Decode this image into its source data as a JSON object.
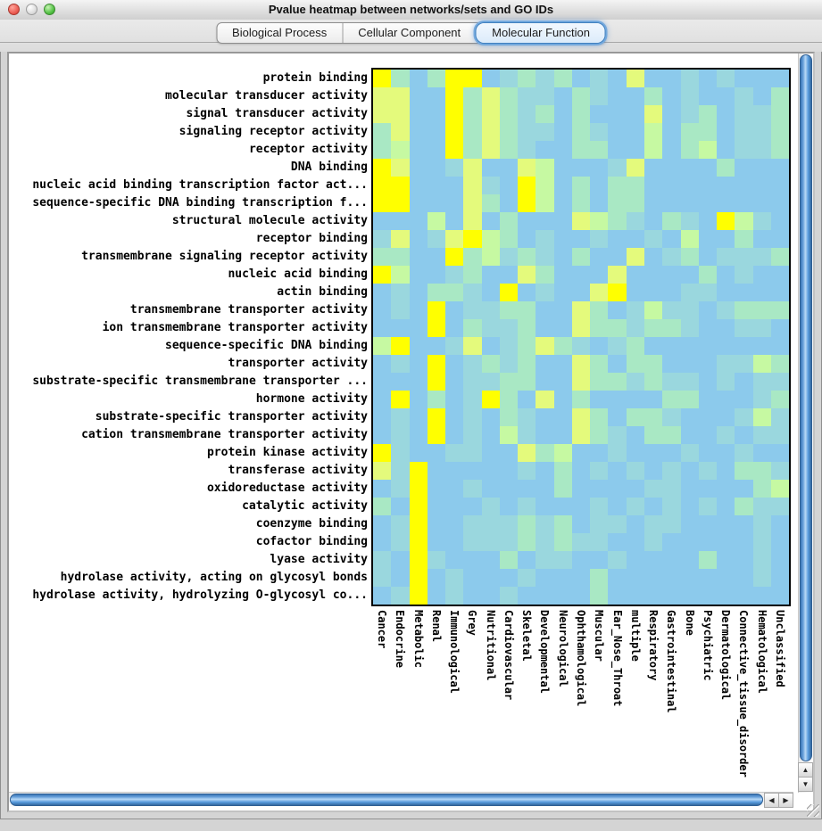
{
  "window": {
    "title": "Pvalue heatmap between networks/sets and GO IDs",
    "traffic_lights": [
      "close",
      "minimize",
      "zoom"
    ]
  },
  "tabs": [
    {
      "label": "Biological Process",
      "selected": false
    },
    {
      "label": "Cellular Component",
      "selected": false
    },
    {
      "label": "Molecular Function",
      "selected": true
    }
  ],
  "icons": {
    "scroll_up": "▲",
    "scroll_down": "▼",
    "scroll_left": "◀",
    "scroll_right": "▶"
  },
  "chart_data": {
    "type": "heatmap",
    "title": "Pvalue heatmap between networks/sets and GO IDs",
    "rows": [
      "protein binding",
      "molecular transducer activity",
      "signal transducer activity",
      "signaling receptor activity",
      "receptor activity",
      "DNA binding",
      "nucleic acid binding transcription factor act...",
      "sequence-specific DNA binding transcription f...",
      "structural molecule activity",
      "receptor binding",
      "transmembrane signaling receptor activity",
      "nucleic acid binding",
      "actin binding",
      "transmembrane transporter activity",
      "ion transmembrane transporter activity",
      "sequence-specific DNA binding",
      "transporter activity",
      "substrate-specific transmembrane transporter ...",
      "hormone activity",
      "substrate-specific transporter activity",
      "cation transmembrane transporter activity",
      "protein kinase activity",
      "transferase activity",
      "oxidoreductase activity",
      "catalytic activity",
      "coenzyme binding",
      "cofactor binding",
      "lyase activity",
      "hydrolase activity, acting on glycosyl bonds",
      "hydrolase activity, hydrolyzing O-glycosyl co..."
    ],
    "columns": [
      "Cancer",
      "Endocrine",
      "Metabolic",
      "Renal",
      "Immunological",
      "Grey",
      "Nutritional",
      "Cardiovascular",
      "Skeletal",
      "Developmental",
      "Neurological",
      "Ophthamological",
      "Muscular",
      "Ear_Nose_Throat",
      "multiple",
      "Respiratory",
      "Gastrointestinal",
      "Bone",
      "Psychiatric",
      "Dermatological",
      "Connective_tissue_disorder",
      "Hematological",
      "Unclassified"
    ],
    "palette": {
      "Y": "#FFFF00",
      "y": "#E4FA7C",
      "g": "#C6F9A2",
      "t": "#A9E8C4",
      "c": "#9AD7DE",
      "b": "#8CCAEC"
    },
    "cells": [
      "YtbtYYbctctbcbybbcbcbbb",
      "yybbYtytccbtcbbtbcbbcbt",
      "yybbYtytctbtbbbybctbcct",
      "tybbYtytccbtcbbgbttbcct",
      "tgbbYtytcbbttbbgbtgbcct",
      "Yybbcybbygbbbcybbbbtbbb",
      "YYbbbycbYgbtbttbbbbbbbb",
      "YYbbbytbYgbtbttbbbbbbbb",
      "bbbgbybtbbbygtcbtcbYgcb",
      "cybcyYgtbcbbcbbcbgbbtbb",
      "ttbbYtgctcbtbbybctbccct",
      "Ygbbctbbytbbbybbbbtbcbb",
      "bcbttcbYbcbbyYbbbccbbbb",
      "bcbYbccttbbytbcgccbcttt",
      "bbbYbtcctbbyttcttcbbccb",
      "gYbbcybctytcbctbbbbbbbb",
      "bcbYbctctbbytbttbbbccgt",
      "bbbYbccttbbyttctccbcbcc",
      "bYbtbcYtbybtbbbbttbbbct",
      "bcbYbcbtcbbytbttcbbbcgc",
      "bcbYbcbgcbbytcbttbbcbcc",
      "Ycbbccbbytgbbcbbbcbbcbb",
      "ycYbbbbbcbtbcbcbcbcbttc",
      "bcYbbcbbbbtbbbbccbbbbtg",
      "tbYbbbcbcbbbcbcbcbcbtcc",
      "bcYbbccctctbccbccbbbbcb",
      "bcYbbccctctccbbcbbbbbcb",
      "cbYcbbbtbccbbcbbbbtbbcb",
      "cbYbcbbbcbbbtbbbbbbbbcb",
      "bcYbcbbcbbbbtbbbbbbbbbb"
    ]
  }
}
